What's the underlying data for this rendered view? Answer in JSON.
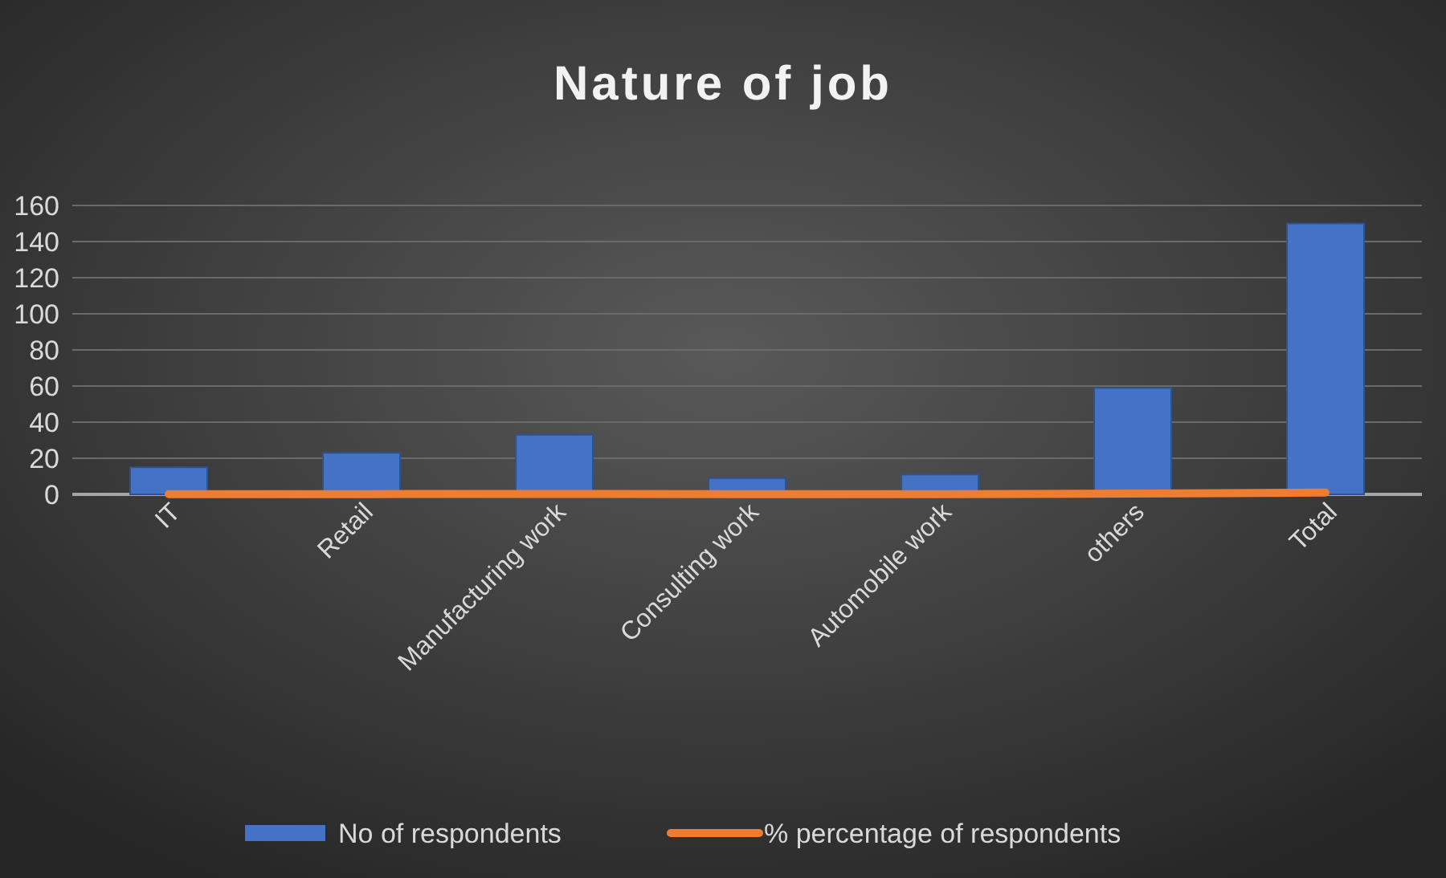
{
  "chart_data": {
    "type": "bar",
    "title": "Nature of job",
    "categories": [
      "IT",
      "Retail",
      "Manufacturing work",
      "Consulting work",
      "Automobile work",
      "others",
      "Total"
    ],
    "series": [
      {
        "name": "No of respondents",
        "color": "#4472c4",
        "values": [
          15,
          23,
          33,
          9,
          11,
          59,
          150
        ]
      },
      {
        "name": "% percentage of respondents",
        "type": "line",
        "color": "#ed7d31",
        "values": [
          0.1,
          0.15,
          0.22,
          0.06,
          0.07,
          0.39,
          1
        ]
      }
    ],
    "ylim": [
      0,
      160
    ],
    "yticks": [
      0,
      20,
      40,
      60,
      80,
      100,
      120,
      140,
      160
    ],
    "grid": "y",
    "legend": "bottom",
    "marker": "none"
  }
}
